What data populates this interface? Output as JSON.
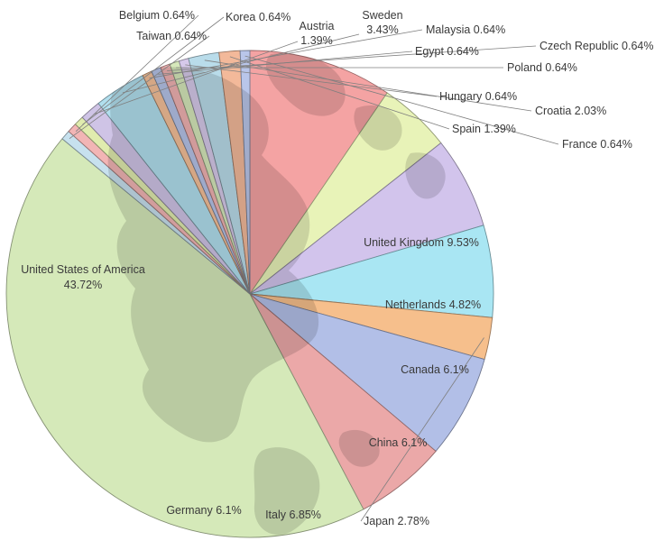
{
  "chart_data": {
    "type": "pie",
    "title": "",
    "slices": [
      {
        "name": "United Kingdom",
        "label": "United Kingdom 9.53%",
        "value": 9.53,
        "color": "#f4a3a3"
      },
      {
        "name": "Netherlands",
        "label": "Netherlands 4.82%",
        "value": 4.82,
        "color": "#e8f3b8"
      },
      {
        "name": "Canada",
        "label": "Canada 6.1%",
        "value": 6.1,
        "color": "#d2c4ec"
      },
      {
        "name": "China",
        "label": "China 6.1%",
        "value": 6.1,
        "color": "#a9e6f3"
      },
      {
        "name": "Japan",
        "label": "Japan 2.78%",
        "value": 2.78,
        "color": "#f6bf8c"
      },
      {
        "name": "Italy",
        "label": "Italy 6.85%",
        "value": 6.85,
        "color": "#b2bfe7"
      },
      {
        "name": "Germany",
        "label": "Germany 6.1%",
        "value": 6.1,
        "color": "#eba8a8"
      },
      {
        "name": "United States of America",
        "label": "United States of America\n43.72%",
        "value": 43.72,
        "color": "#d5e9b9"
      },
      {
        "name": "Taiwan",
        "label": "Taiwan 0.64%",
        "value": 0.64,
        "color": "#c7e1ee"
      },
      {
        "name": "Belgium",
        "label": "Belgium 0.64%",
        "value": 0.64,
        "color": "#f2b5b5"
      },
      {
        "name": "Korea",
        "label": "Korea 0.64%",
        "value": 0.64,
        "color": "#e0ecae"
      },
      {
        "name": "Austria",
        "label": "Austria\n1.39%",
        "value": 1.39,
        "color": "#cfc4e6"
      },
      {
        "name": "Sweden",
        "label": "Sweden\n3.43%",
        "value": 3.43,
        "color": "#b1dfee"
      },
      {
        "name": "Malaysia",
        "label": "Malaysia 0.64%",
        "value": 0.64,
        "color": "#f5c099"
      },
      {
        "name": "Egypt",
        "label": "Egypt 0.64%",
        "value": 0.64,
        "color": "#b6c4e8"
      },
      {
        "name": "Czech Republic",
        "label": "Czech Republic 0.64%",
        "value": 0.64,
        "color": "#f1b2b2"
      },
      {
        "name": "Poland",
        "label": "Poland 0.64%",
        "value": 0.64,
        "color": "#d6e8bb"
      },
      {
        "name": "Hungary",
        "label": "Hungary 0.64%",
        "value": 0.64,
        "color": "#d6c9ea"
      },
      {
        "name": "Croatia",
        "label": "Croatia 2.03%",
        "value": 2.03,
        "color": "#b9dcea"
      },
      {
        "name": "Spain",
        "label": "Spain 1.39%",
        "value": 1.39,
        "color": "#f3b99a"
      },
      {
        "name": "France",
        "label": "France 0.64%",
        "value": 0.64,
        "color": "#b9c6ea"
      }
    ],
    "start_angle_deg": -90,
    "direction": "clockwise",
    "legend": "none",
    "data_labels": "category and percentage"
  }
}
